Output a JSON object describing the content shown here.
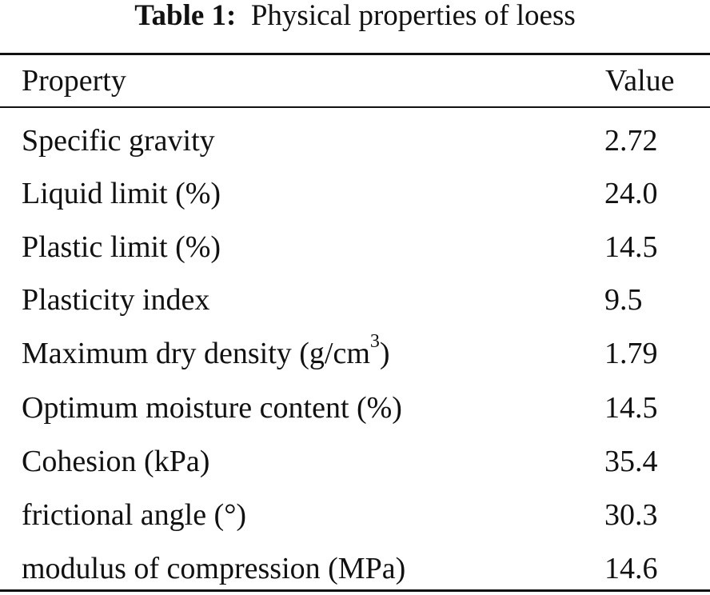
{
  "caption": {
    "label": "Table 1:",
    "text": "Physical properties of loess"
  },
  "table": {
    "headers": [
      "Property",
      "Value"
    ],
    "rows": [
      {
        "property": "Specific gravity",
        "value": "2.72"
      },
      {
        "property": "Liquid limit (%)",
        "value": "24.0"
      },
      {
        "property": "Plastic limit (%)",
        "value": "14.5"
      },
      {
        "property": "Plasticity index",
        "value": "9.5"
      },
      {
        "property_pre": "Maximum dry density (g/cm",
        "property_sup": "3",
        "property_post": ")",
        "value": "1.79"
      },
      {
        "property": "Optimum moisture content (%)",
        "value": "14.5"
      },
      {
        "property": "Cohesion (kPa)",
        "value": "35.4"
      },
      {
        "property": "frictional angle (°)",
        "value": "30.3"
      },
      {
        "property": "modulus of compression (MPa)",
        "value": "14.6"
      }
    ]
  }
}
